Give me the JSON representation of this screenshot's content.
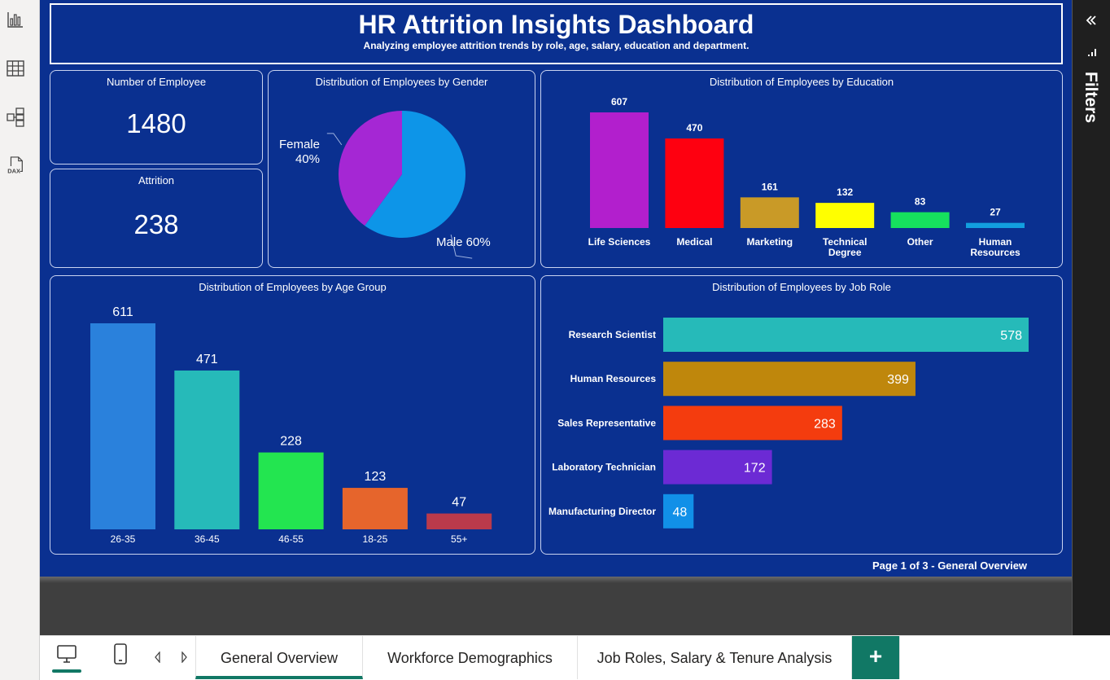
{
  "leftbar": {
    "icons": [
      "report-view-icon",
      "table-view-icon",
      "model-view-icon",
      "dax-query-icon"
    ],
    "dax_label": "DAX"
  },
  "header": {
    "title": "HR Attrition Insights Dashboard",
    "subtitle": "Analyzing employee attrition trends by role, age, salary, education and department."
  },
  "cards": {
    "employees": {
      "label": "Number of Employee",
      "value": "1480"
    },
    "attrition": {
      "label": "Attrition",
      "value": "238"
    }
  },
  "chart_data": [
    {
      "type": "pie",
      "title": "Distribution of Employees by Gender",
      "categories": [
        "Male",
        "Female"
      ],
      "values": [
        60,
        40
      ],
      "labels": [
        "Male 60%",
        "Female",
        "40%"
      ],
      "colors": [
        "#0d95e8",
        "#a527d4"
      ]
    },
    {
      "type": "bar",
      "title": "Distribution of Employees by Education",
      "categories": [
        "Life Sciences",
        "Medical",
        "Marketing",
        "Technical Degree",
        "Other",
        "Human Resources"
      ],
      "category_lines": [
        [
          "Life Sciences"
        ],
        [
          "Medical"
        ],
        [
          "Marketing"
        ],
        [
          "Technical",
          "Degree"
        ],
        [
          "Other"
        ],
        [
          "Human",
          "Resources"
        ]
      ],
      "values": [
        607,
        470,
        161,
        132,
        83,
        27
      ],
      "colors": [
        "#b21fcd",
        "#fe0010",
        "#c99a27",
        "#ffff00",
        "#16e05e",
        "#129fdf"
      ]
    },
    {
      "type": "bar",
      "title": "Distribution of Employees by Age Group",
      "categories": [
        "26-35",
        "36-45",
        "46-55",
        "18-25",
        "55+"
      ],
      "values": [
        611,
        471,
        228,
        123,
        47
      ],
      "colors": [
        "#2a81dc",
        "#26bab9",
        "#23e550",
        "#e6652c",
        "#ba3a4b"
      ]
    },
    {
      "type": "bar",
      "orientation": "horizontal",
      "title": "Distribution of Employees by Job Role",
      "categories": [
        "Research Scientist",
        "Human Resources",
        "Sales Representative",
        "Laboratory Technician",
        "Manufacturing Director"
      ],
      "values": [
        578,
        399,
        283,
        172,
        48
      ],
      "colors": [
        "#26bab9",
        "#bf870c",
        "#f43c0e",
        "#6c2ad4",
        "#1190e8"
      ]
    }
  ],
  "footer": {
    "page_text": "Page 1 of 3 - General Overview"
  },
  "filters": {
    "label": "Filters",
    "collapse_icon": "chevron-double-left-icon"
  },
  "tabs": {
    "items": [
      "General Overview",
      "Workforce Demographics",
      "Job Roles, Salary & Tenure Analysis"
    ],
    "active": "General Overview",
    "add_label": "+"
  }
}
